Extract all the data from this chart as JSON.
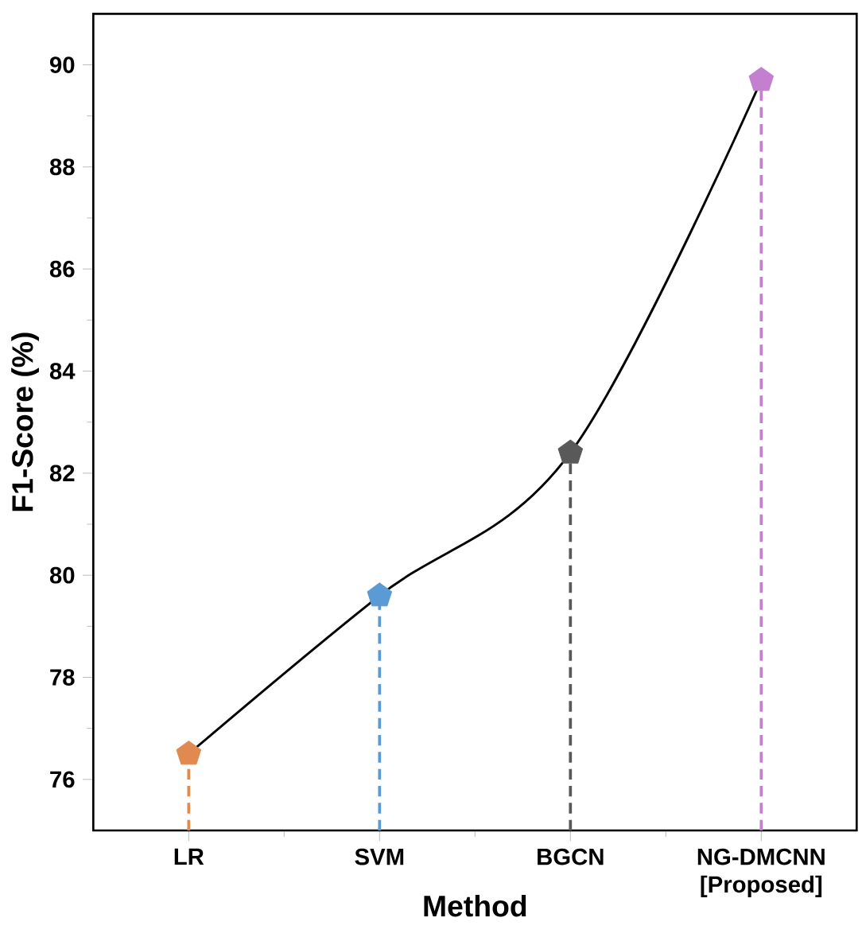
{
  "chart_data": {
    "type": "lollipop",
    "xlabel": "Method",
    "ylabel": "F1-Score (%)",
    "categories": [
      "LR",
      "SVM",
      "BGCN",
      "NG-DMCNN [Proposed]"
    ],
    "ylim": [
      75,
      91
    ],
    "yticks": [
      76,
      78,
      80,
      82,
      84,
      86,
      88,
      90
    ],
    "series": [
      {
        "type": "line",
        "color": "#000000",
        "values": [
          76.5,
          79.6,
          82.4,
          89.7
        ]
      },
      {
        "colors": [
          "#e08a50",
          "#5b9bd5",
          "#595959",
          "#c47fd0"
        ],
        "line_style": "dashed",
        "values": [
          76.5,
          79.6,
          82.4,
          89.7
        ]
      }
    ]
  }
}
